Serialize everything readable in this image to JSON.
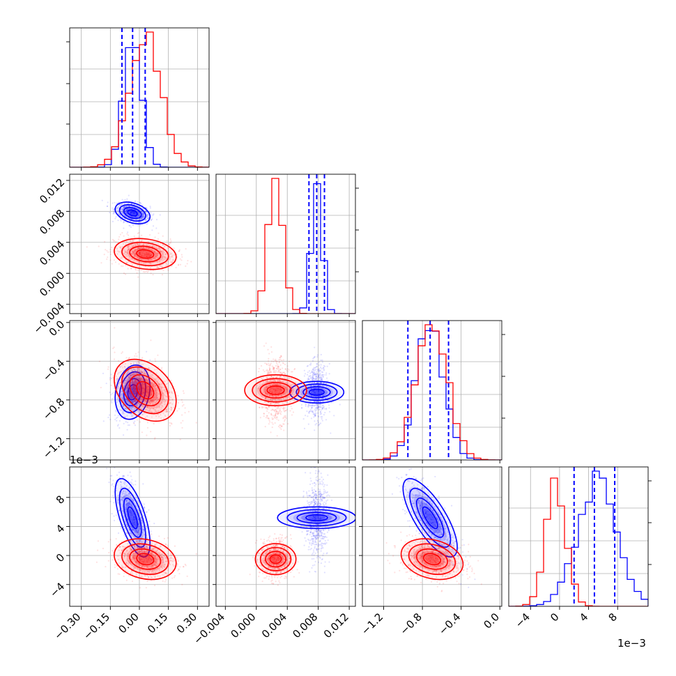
{
  "colors": {
    "series_a": "#0000ff",
    "series_b": "#ff0000",
    "grid": "#b0b0b0",
    "frame": "#000000"
  },
  "chart_data": {
    "type": "corner",
    "parameters": 4,
    "grid": true,
    "series": [
      {
        "color": "#0000ff",
        "mean": [
          -0.035,
          0.0078,
          -0.00072,
          0.0052
        ],
        "std": [
          0.045,
          0.0007,
          0.00014,
          0.0027
        ],
        "quantiles": [
          [
            -0.09,
            -0.035,
            0.03
          ],
          [
            0.0068,
            0.0078,
            0.0088
          ],
          [
            -0.00095,
            -0.00072,
            -0.00053
          ],
          [
            0.002,
            0.0048,
            0.0076
          ]
        ]
      },
      {
        "color": "#ff0000",
        "mean": [
          0.03,
          0.0025,
          -0.0007,
          -0.0005
        ],
        "std": [
          0.08,
          0.001,
          0.00016,
          0.0014
        ]
      }
    ],
    "axes": [
      {
        "range": [
          -0.36,
          0.36
        ],
        "ticks": [
          -0.3,
          -0.15,
          0.0,
          0.15,
          0.3
        ],
        "tick_labels": [
          "−0.30",
          "−0.15",
          "0.00",
          "0.15",
          "0.30"
        ]
      },
      {
        "range": [
          -0.0052,
          0.0128
        ],
        "ticks": [
          -0.004,
          0.0,
          0.004,
          0.008,
          0.012
        ],
        "tick_labels": [
          "−0.004",
          "0.000",
          "0.004",
          "0.008",
          "0.012"
        ]
      },
      {
        "range": [
          -0.00142,
          2e-05
        ],
        "ticks": [
          -0.0012,
          -0.0008,
          -0.0004,
          0.0
        ],
        "tick_labels": [
          "−1.2",
          "−0.8",
          "−0.4",
          "0.0"
        ],
        "offset_label": "1e−3"
      },
      {
        "range": [
          -0.007,
          0.0122
        ],
        "ticks": [
          -0.004,
          0.0,
          0.004,
          0.008
        ],
        "tick_labels": [
          "−4",
          "0",
          "4",
          "8"
        ],
        "offset_label": "1e−3"
      }
    ]
  }
}
